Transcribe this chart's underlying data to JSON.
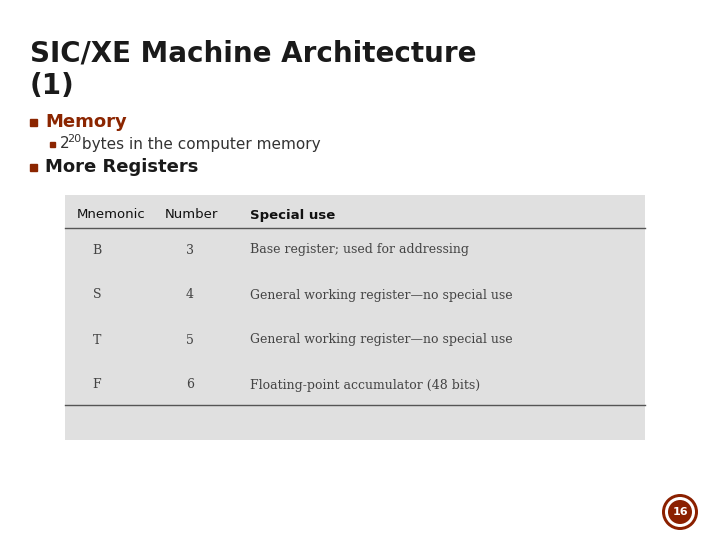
{
  "title_line1": "SIC/XE Machine Architecture",
  "title_line2": "(1)",
  "title_fontsize": 20,
  "title_color": "#1a1a1a",
  "bullet_square_color": "#8B2500",
  "bullet1_text": "Memory",
  "bullet1_fontsize": 13,
  "bullet1_color": "#8B2500",
  "subbullet1_prefix": "2",
  "subbullet1_sup": "20",
  "subbullet1_suffix": " bytes in the computer memory",
  "subbullet1_fontsize": 11,
  "subbullet1_color": "#333333",
  "bullet2_text": "More Registers",
  "bullet2_fontsize": 13,
  "bullet2_color": "#1a1a1a",
  "table_headers": [
    "Mnemonic",
    "Number",
    "Special use"
  ],
  "table_data": [
    [
      "B",
      "3",
      "Base register; used for addressing"
    ],
    [
      "S",
      "4",
      "General working register—no special use"
    ],
    [
      "T",
      "5",
      "General working register—no special use"
    ],
    [
      "F",
      "6",
      "Floating-point accumulator (48 bits)"
    ]
  ],
  "table_fontsize": 9,
  "table_header_fontsize": 9.5,
  "table_bg_color": "#e0e0e0",
  "table_line_color": "#555555",
  "background_color": "#ffffff",
  "page_number": "16",
  "page_num_bg": "#8B2000",
  "page_num_fg": "#ffffff",
  "page_num_ring": "#ffffff"
}
